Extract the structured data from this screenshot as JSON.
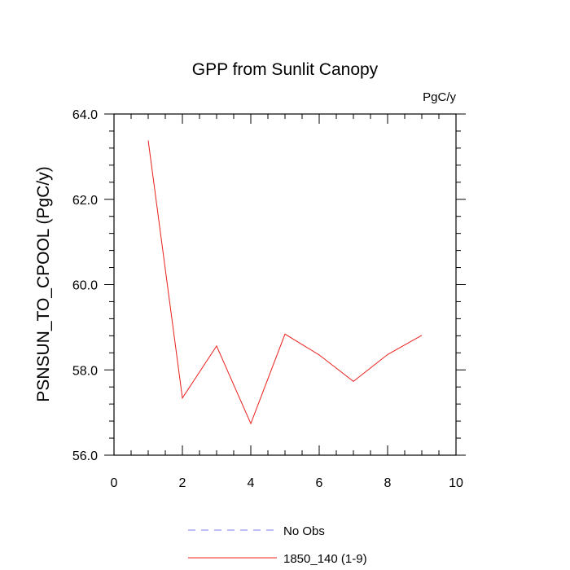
{
  "chart_data": {
    "type": "line",
    "title": "GPP from Sunlit Canopy",
    "units_label": "PgC/y",
    "xlabel": "",
    "ylabel": "PSNSUN_TO_CPOOL  (PgC/y)",
    "xlim": [
      0,
      10
    ],
    "ylim": [
      56.0,
      64.0
    ],
    "x_ticks": [
      0,
      2,
      4,
      6,
      8,
      10
    ],
    "x_tick_labels": [
      "0",
      "2",
      "4",
      "6",
      "8",
      "10"
    ],
    "y_ticks": [
      56.0,
      58.0,
      60.0,
      62.0,
      64.0
    ],
    "y_tick_labels": [
      "56.0",
      "58.0",
      "60.0",
      "62.0",
      "64.0"
    ],
    "grid": false,
    "legend_position": "bottom",
    "series": [
      {
        "name": "1850_140 (1-9)",
        "color": "#e8201c",
        "x": [
          1,
          2,
          3,
          4,
          5,
          6,
          7,
          8,
          9
        ],
        "y": [
          63.38,
          57.34,
          58.56,
          56.74,
          58.84,
          58.35,
          57.73,
          58.36,
          58.81
        ]
      }
    ],
    "legend": [
      {
        "label": "No Obs",
        "color": "#7b7bf0",
        "style": "dashed"
      },
      {
        "label": "1850_140 (1-9)",
        "color": "#e8201c",
        "style": "solid"
      }
    ]
  }
}
